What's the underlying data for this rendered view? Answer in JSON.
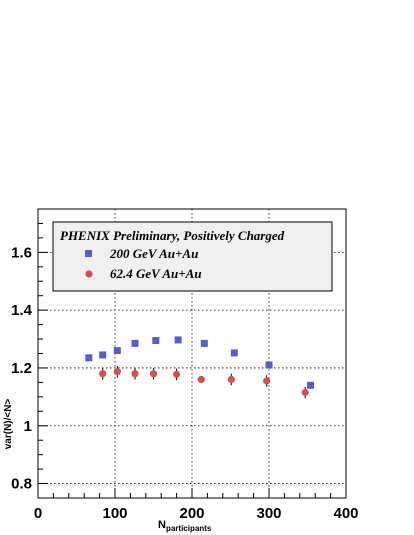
{
  "chart_data": {
    "type": "scatter",
    "xlabel_main": "N",
    "xlabel_sub": "participants",
    "ylabel": "var(N)/<N>",
    "xlim": [
      0,
      400
    ],
    "ylim": [
      0.75,
      1.75
    ],
    "x_ticks": [
      0,
      100,
      200,
      300,
      400
    ],
    "y_ticks": [
      0.8,
      1,
      1.2,
      1.4,
      1.6
    ],
    "x_tick_labels": [
      "0",
      "100",
      "200",
      "300",
      "400"
    ],
    "y_tick_labels": [
      "0.8",
      "1",
      "1.2",
      "1.4",
      "1.6"
    ],
    "grid": true,
    "legend_position": "top-left",
    "legend": {
      "title": "PHENIX Preliminary, Positively Charged",
      "entries": [
        {
          "label": "200 GeV Au+Au",
          "marker": "square",
          "color": "#5a5ad2"
        },
        {
          "label": "62.4 GeV Au+Au",
          "marker": "circle",
          "color": "#d2504e"
        }
      ]
    },
    "series": [
      {
        "name": "200 GeV Au+Au",
        "marker": "square",
        "color": "#5a5ad2",
        "points": [
          {
            "x": 66,
            "y": 1.235
          },
          {
            "x": 84,
            "y": 1.245
          },
          {
            "x": 103,
            "y": 1.26
          },
          {
            "x": 126,
            "y": 1.285
          },
          {
            "x": 153,
            "y": 1.295
          },
          {
            "x": 182,
            "y": 1.297
          },
          {
            "x": 216,
            "y": 1.285
          },
          {
            "x": 255,
            "y": 1.252
          },
          {
            "x": 300,
            "y": 1.21
          },
          {
            "x": 354,
            "y": 1.14
          }
        ]
      },
      {
        "name": "62.4 GeV Au+Au",
        "marker": "circle",
        "color": "#d2504e",
        "points": [
          {
            "x": 84,
            "y": 1.18,
            "err": 0.02
          },
          {
            "x": 103,
            "y": 1.187,
            "err": 0.02
          },
          {
            "x": 126,
            "y": 1.18,
            "err": 0.02
          },
          {
            "x": 150,
            "y": 1.18,
            "err": 0.02
          },
          {
            "x": 180,
            "y": 1.178,
            "err": 0.02
          },
          {
            "x": 212,
            "y": 1.16,
            "err": 0.0
          },
          {
            "x": 251,
            "y": 1.16,
            "err": 0.02
          },
          {
            "x": 297,
            "y": 1.155,
            "err": 0.02
          },
          {
            "x": 347,
            "y": 1.115,
            "err": 0.02
          }
        ]
      }
    ]
  }
}
